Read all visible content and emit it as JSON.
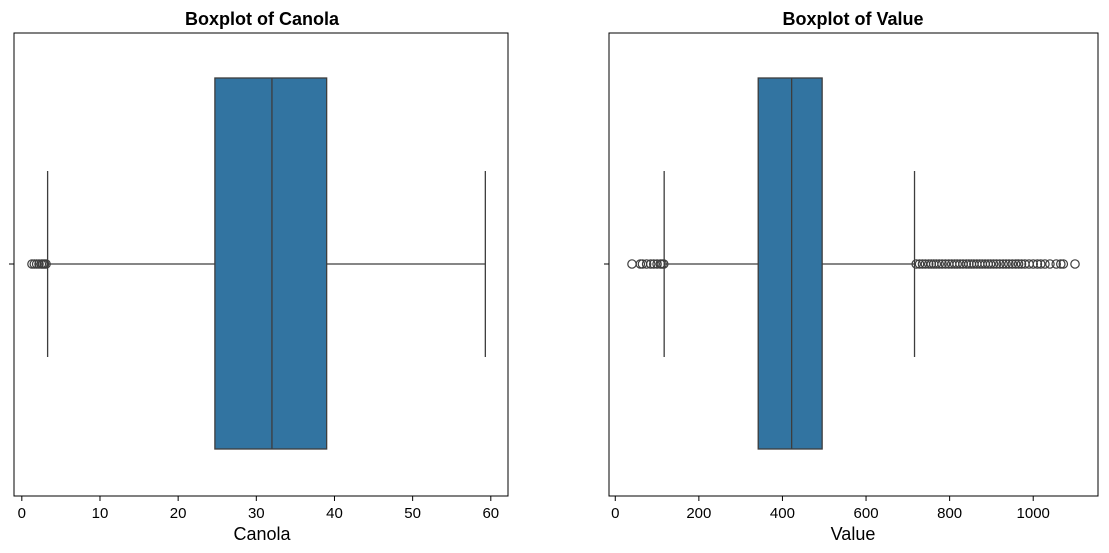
{
  "chart_data": [
    {
      "type": "boxplot",
      "title": "Boxplot of Canola",
      "xlabel": "Canola",
      "ylabel": "",
      "xlim": [
        -1,
        62.2
      ],
      "xticks": [
        0,
        10,
        20,
        30,
        40,
        50,
        60
      ],
      "xtick_labels": [
        "0",
        "10",
        "20",
        "30",
        "40",
        "50",
        "60"
      ],
      "stats": {
        "whislo": 3.3,
        "q1": 24.7,
        "median": 32.0,
        "q3": 39.0,
        "whishi": 59.3
      },
      "fliers": [
        1.3,
        1.6,
        1.9,
        2.2,
        2.5,
        2.7,
        2.9,
        3.1
      ],
      "box_color": "#3274a1",
      "line_color": "#3d3d3d"
    },
    {
      "type": "boxplot",
      "title": "Boxplot of Value",
      "xlabel": "Value",
      "ylabel": "",
      "xlim": [
        -15,
        1155
      ],
      "xticks": [
        0,
        200,
        400,
        600,
        800,
        1000
      ],
      "xtick_labels": [
        "0",
        "200",
        "400",
        "600",
        "800",
        "1000"
      ],
      "stats": {
        "whislo": 117,
        "q1": 342,
        "median": 422,
        "q3": 495,
        "whishi": 716
      },
      "fliers": [
        40,
        60,
        65,
        75,
        85,
        92,
        100,
        108,
        112,
        116,
        720,
        728,
        735,
        742,
        750,
        756,
        762,
        768,
        775,
        782,
        790,
        798,
        805,
        812,
        818,
        825,
        832,
        840,
        846,
        852,
        858,
        865,
        872,
        878,
        885,
        892,
        898,
        905,
        912,
        920,
        928,
        935,
        942,
        950,
        958,
        965,
        972,
        980,
        990,
        1000,
        1010,
        1018,
        1028,
        1040,
        1055,
        1066,
        1072,
        1100
      ],
      "box_color": "#3274a1",
      "line_color": "#3d3d3d"
    }
  ]
}
